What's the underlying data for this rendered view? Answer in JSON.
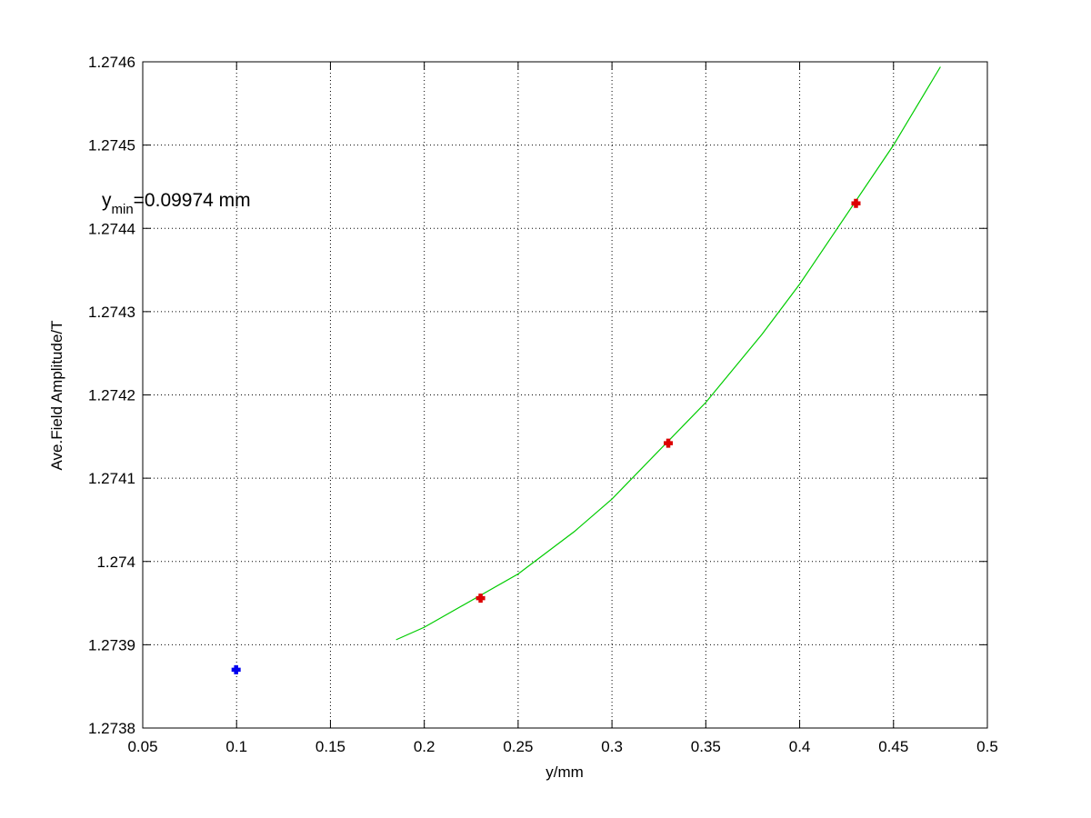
{
  "chart_data": {
    "type": "line",
    "xlabel": "y/mm",
    "ylabel": "Ave.Field Amplitude/T",
    "xlim": [
      0.05,
      0.5
    ],
    "ylim": [
      1.2738,
      1.2746
    ],
    "xticks": [
      0.05,
      0.1,
      0.15,
      0.2,
      0.25,
      0.3,
      0.35,
      0.4,
      0.45,
      0.5
    ],
    "yticks": [
      1.2738,
      1.2739,
      1.274,
      1.2741,
      1.2742,
      1.2743,
      1.2744,
      1.2745,
      1.2746
    ],
    "grid": true,
    "annotation": {
      "main": "y",
      "sub": "min",
      "rest": "=0.09974 mm"
    },
    "series": [
      {
        "color": "#00cc00",
        "style": "line",
        "x": [
          0.185,
          0.2,
          0.25,
          0.28,
          0.3,
          0.35,
          0.38,
          0.4,
          0.45,
          0.475
        ],
        "values": [
          1.273906,
          1.273921,
          1.273985,
          1.274036,
          1.274075,
          1.274191,
          1.274273,
          1.274333,
          1.2745,
          1.274594
        ]
      },
      {
        "color": "#dd0000",
        "style": "marker",
        "x": [
          0.23,
          0.33,
          0.43
        ],
        "values": [
          1.273956,
          1.274142,
          1.27443
        ]
      },
      {
        "color": "#0000ee",
        "style": "marker",
        "x": [
          0.09974
        ],
        "values": [
          1.27387
        ]
      }
    ]
  }
}
